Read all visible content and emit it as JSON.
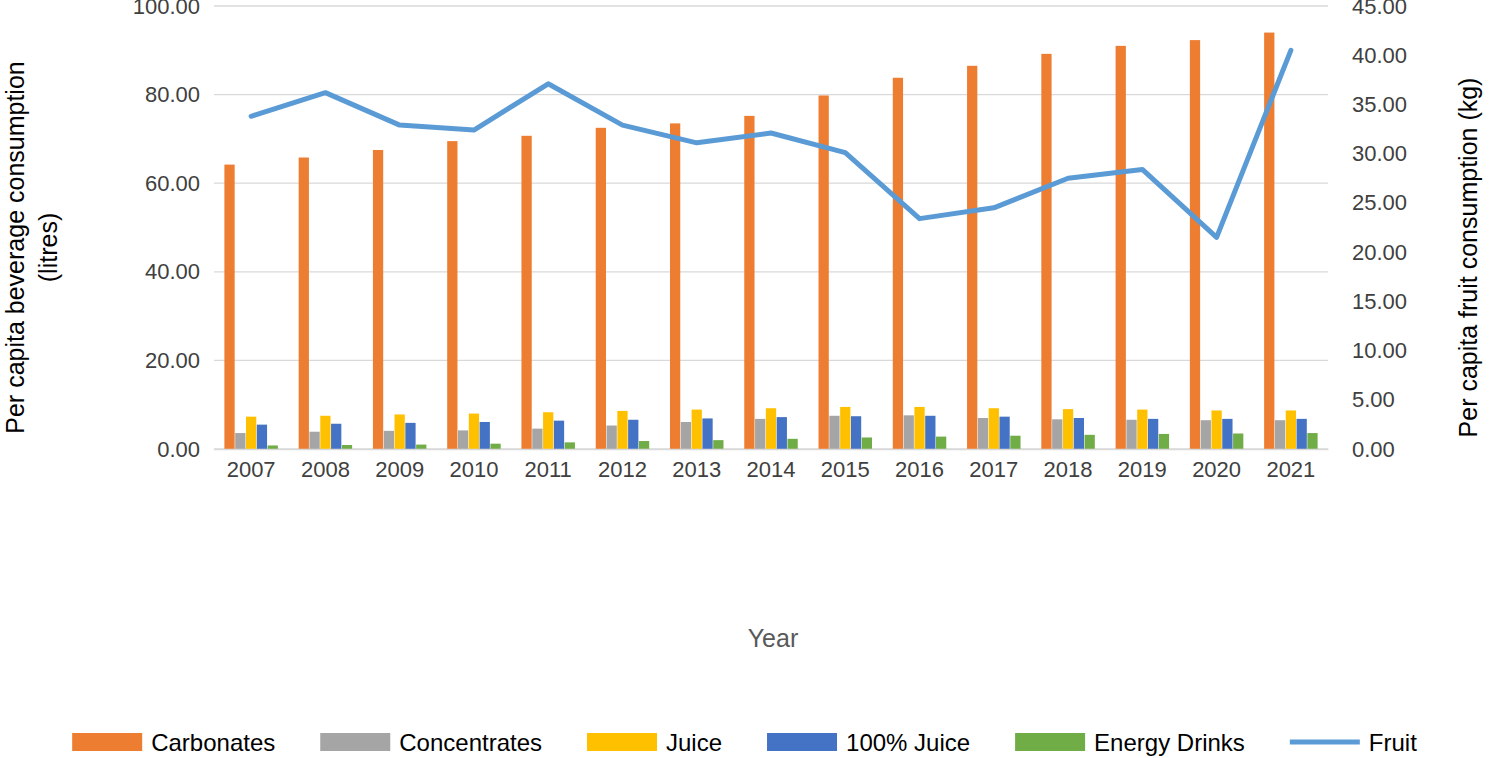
{
  "chart_data": {
    "type": "bar",
    "y_label": [
      "Per capita beverage consumption",
      "(litres)"
    ],
    "y2_label": "Per capita fruit consumption (kg)",
    "x_label": "Year",
    "categories": [
      "2007",
      "2008",
      "2009",
      "2010",
      "2011",
      "2012",
      "2013",
      "2014",
      "2015",
      "2016",
      "2017",
      "2018",
      "2019",
      "2020",
      "2021"
    ],
    "ylim": [
      0,
      100
    ],
    "yticks": [
      {
        "value": 0,
        "label": "0.00"
      },
      {
        "value": 20,
        "label": "20.00"
      },
      {
        "value": 40,
        "label": "40.00"
      },
      {
        "value": 60,
        "label": "60.00"
      },
      {
        "value": 80,
        "label": "80.00"
      },
      {
        "value": 100,
        "label": "100.00"
      }
    ],
    "y2lim": [
      0,
      45
    ],
    "y2ticks": [
      {
        "value": 0,
        "label": "0.00"
      },
      {
        "value": 5,
        "label": "5.00"
      },
      {
        "value": 10,
        "label": "10.00"
      },
      {
        "value": 15,
        "label": "15.00"
      },
      {
        "value": 20,
        "label": "20.00"
      },
      {
        "value": 25,
        "label": "25.00"
      },
      {
        "value": 30,
        "label": "30.00"
      },
      {
        "value": 35,
        "label": "35.00"
      },
      {
        "value": 40,
        "label": "40.00"
      },
      {
        "value": 45,
        "label": "45.00"
      }
    ],
    "grid": true,
    "legend": "bottom",
    "series": [
      {
        "name": "Carbonates",
        "color": "#ed7d31",
        "type": "bar",
        "values": [
          64.2,
          65.8,
          67.5,
          69.5,
          70.7,
          72.5,
          73.5,
          75.2,
          79.8,
          83.8,
          86.5,
          89.2,
          91.0,
          92.3,
          94.0
        ]
      },
      {
        "name": "Concentrates",
        "color": "#a5a5a5",
        "type": "bar",
        "values": [
          3.6,
          3.9,
          4.1,
          4.2,
          4.6,
          5.3,
          6.1,
          6.8,
          7.5,
          7.6,
          7.0,
          6.7,
          6.6,
          6.5,
          6.5
        ]
      },
      {
        "name": "Juice",
        "color": "#ffc000",
        "type": "bar",
        "values": [
          7.3,
          7.5,
          7.8,
          8.0,
          8.3,
          8.6,
          8.9,
          9.2,
          9.5,
          9.5,
          9.2,
          9.0,
          8.9,
          8.7,
          8.7
        ]
      },
      {
        "name": "100% Juice",
        "color": "#4472c4",
        "type": "bar",
        "values": [
          5.5,
          5.7,
          5.9,
          6.1,
          6.4,
          6.6,
          6.9,
          7.2,
          7.4,
          7.5,
          7.3,
          7.0,
          6.8,
          6.8,
          6.8
        ]
      },
      {
        "name": "Energy Drinks",
        "color": "#70ad47",
        "type": "bar",
        "values": [
          0.8,
          0.9,
          1.0,
          1.2,
          1.5,
          1.8,
          2.0,
          2.3,
          2.6,
          2.8,
          3.0,
          3.2,
          3.4,
          3.5,
          3.6
        ]
      },
      {
        "name": "Fruit",
        "color": "#5b9bd5",
        "type": "line",
        "axis": "y2",
        "values": [
          33.8,
          36.2,
          32.9,
          32.4,
          37.1,
          32.9,
          31.1,
          32.1,
          30.1,
          23.4,
          24.5,
          27.5,
          28.4,
          21.5,
          40.5
        ]
      }
    ]
  }
}
